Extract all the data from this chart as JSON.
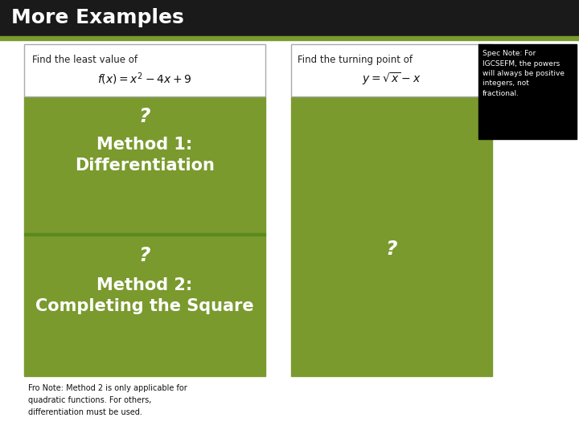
{
  "title": "More Examples",
  "title_bg": "#1a1a1a",
  "title_color": "#ffffff",
  "title_fontsize": 18,
  "green_color": "#7a9a2e",
  "separator_color": "#5a8a1e",
  "white_bg": "#ffffff",
  "black_bg": "#000000",
  "left_box_label1": "Find the least value of",
  "left_box_math": "$f(x) = x^2 - 4x + 9$",
  "right_box_label1": "Find the turning point of",
  "right_box_math": "$y = \\sqrt{x} - x$",
  "method1_q": "?",
  "method1_line1": "Method 1:",
  "method1_line2": "Differentiation",
  "method2_q": "?",
  "method2_line1": "Method 2:",
  "method2_line2": "Completing the Square",
  "right_q": "?",
  "spec_note": "Spec Note: For\nIGCSEFM, the powers\nwill always be positive\nintegers, not\nfractional.",
  "fro_note_line1": "Fro Note: Method 2 is only applicable for",
  "fro_note_line2": "quadratic functions. For others,",
  "fro_note_line3": "differentiation must be used."
}
